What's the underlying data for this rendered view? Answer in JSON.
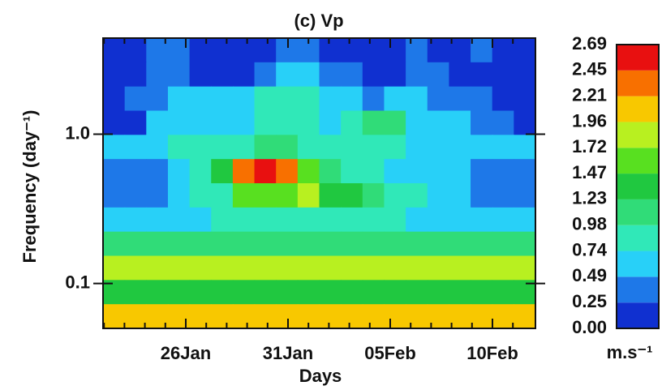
{
  "chart_data": {
    "type": "contour",
    "title": "(c) Vp",
    "x_label": "Days",
    "y_label": "Frequency (day⁻¹)",
    "xticks": [
      "26Jan",
      "31Jan",
      "05Feb",
      "10Feb"
    ],
    "ylim": [
      0.05,
      4.4
    ],
    "yticks": [
      0.1,
      {
        "value": 1,
        "label": "1.0"
      }
    ],
    "y_log": true,
    "colorbar_unit": "m.s⁻¹",
    "levels": [
      {
        "value": 0,
        "label": "0.00"
      },
      0.25,
      0.49,
      0.74,
      0.98,
      1.23,
      1.47,
      1.72,
      1.96,
      2.21,
      2.45,
      2.69
    ],
    "colors": [
      "#1030d0",
      "#1e78e8",
      "#28d0f8",
      "#30e8b8",
      "#30dc78",
      "#20c840",
      "#58e020",
      "#b8f020",
      "#f8c800",
      "#f87000",
      "#e81010"
    ],
    "z": [
      [
        0.1,
        0.1,
        0.3,
        0.3,
        0.1,
        0.1,
        0.1,
        0.1,
        0.3,
        0.4,
        0.1,
        0.1,
        0.1,
        0.1,
        0.3,
        0.1,
        0.1,
        0.3,
        0.1,
        0.1
      ],
      [
        0.1,
        0.1,
        0.4,
        0.3,
        0.1,
        0.1,
        0.1,
        0.3,
        0.6,
        0.6,
        0.3,
        0.4,
        0.1,
        0.1,
        0.4,
        0.3,
        0.1,
        0.1,
        0.1,
        0.1
      ],
      [
        0.1,
        0.3,
        0.4,
        0.6,
        0.6,
        0.6,
        0.6,
        0.8,
        0.9,
        0.8,
        0.6,
        0.6,
        0.4,
        0.6,
        0.6,
        0.4,
        0.3,
        0.3,
        0.1,
        0.1
      ],
      [
        0.1,
        0.1,
        0.6,
        0.6,
        0.6,
        0.6,
        0.7,
        0.8,
        0.8,
        0.8,
        0.7,
        0.8,
        1.1,
        1.1,
        0.7,
        0.6,
        0.6,
        0.3,
        0.3,
        0.1
      ],
      [
        0.5,
        0.5,
        0.5,
        0.8,
        0.8,
        0.8,
        0.9,
        1.0,
        1.0,
        0.9,
        0.8,
        0.8,
        0.9,
        0.8,
        0.7,
        0.6,
        0.6,
        0.5,
        0.5,
        0.5
      ],
      [
        0.4,
        0.3,
        0.4,
        0.5,
        0.8,
        1.4,
        2.3,
        2.6,
        2.4,
        1.7,
        1.1,
        0.8,
        0.8,
        0.7,
        0.6,
        0.6,
        0.5,
        0.4,
        0.4,
        0.4
      ],
      [
        0.3,
        0.3,
        0.4,
        0.6,
        0.8,
        0.9,
        1.5,
        1.5,
        1.5,
        1.8,
        1.3,
        1.3,
        1.1,
        0.9,
        0.8,
        0.7,
        0.6,
        0.4,
        0.3,
        0.3
      ],
      [
        0.6,
        0.6,
        0.6,
        0.6,
        0.7,
        0.8,
        0.8,
        0.9,
        0.9,
        0.9,
        0.9,
        0.8,
        0.8,
        0.8,
        0.7,
        0.7,
        0.6,
        0.6,
        0.6,
        0.6
      ],
      [
        1.0,
        1.0,
        1.0,
        1.0,
        1.0,
        1.0,
        1.1,
        1.1,
        1.1,
        1.1,
        1.1,
        1.1,
        1.0,
        1.0,
        1.0,
        1.0,
        1.0,
        1.0,
        1.0,
        1.0
      ],
      [
        1.9,
        1.9,
        1.9,
        1.9,
        1.9,
        1.9,
        1.9,
        1.9,
        1.9,
        1.9,
        1.9,
        1.9,
        1.9,
        1.9,
        1.9,
        1.9,
        1.9,
        1.9,
        1.9,
        1.9
      ],
      [
        1.3,
        1.3,
        1.3,
        1.3,
        1.3,
        1.3,
        1.3,
        1.3,
        1.3,
        1.3,
        1.3,
        1.3,
        1.3,
        1.3,
        1.3,
        1.3,
        1.3,
        1.3,
        1.3,
        1.3
      ],
      [
        2.0,
        2.0,
        2.0,
        2.0,
        2.0,
        2.0,
        2.0,
        2.0,
        2.0,
        2.0,
        2.0,
        2.0,
        2.0,
        2.0,
        2.0,
        2.0,
        2.0,
        2.0,
        2.0,
        2.0
      ]
    ]
  }
}
